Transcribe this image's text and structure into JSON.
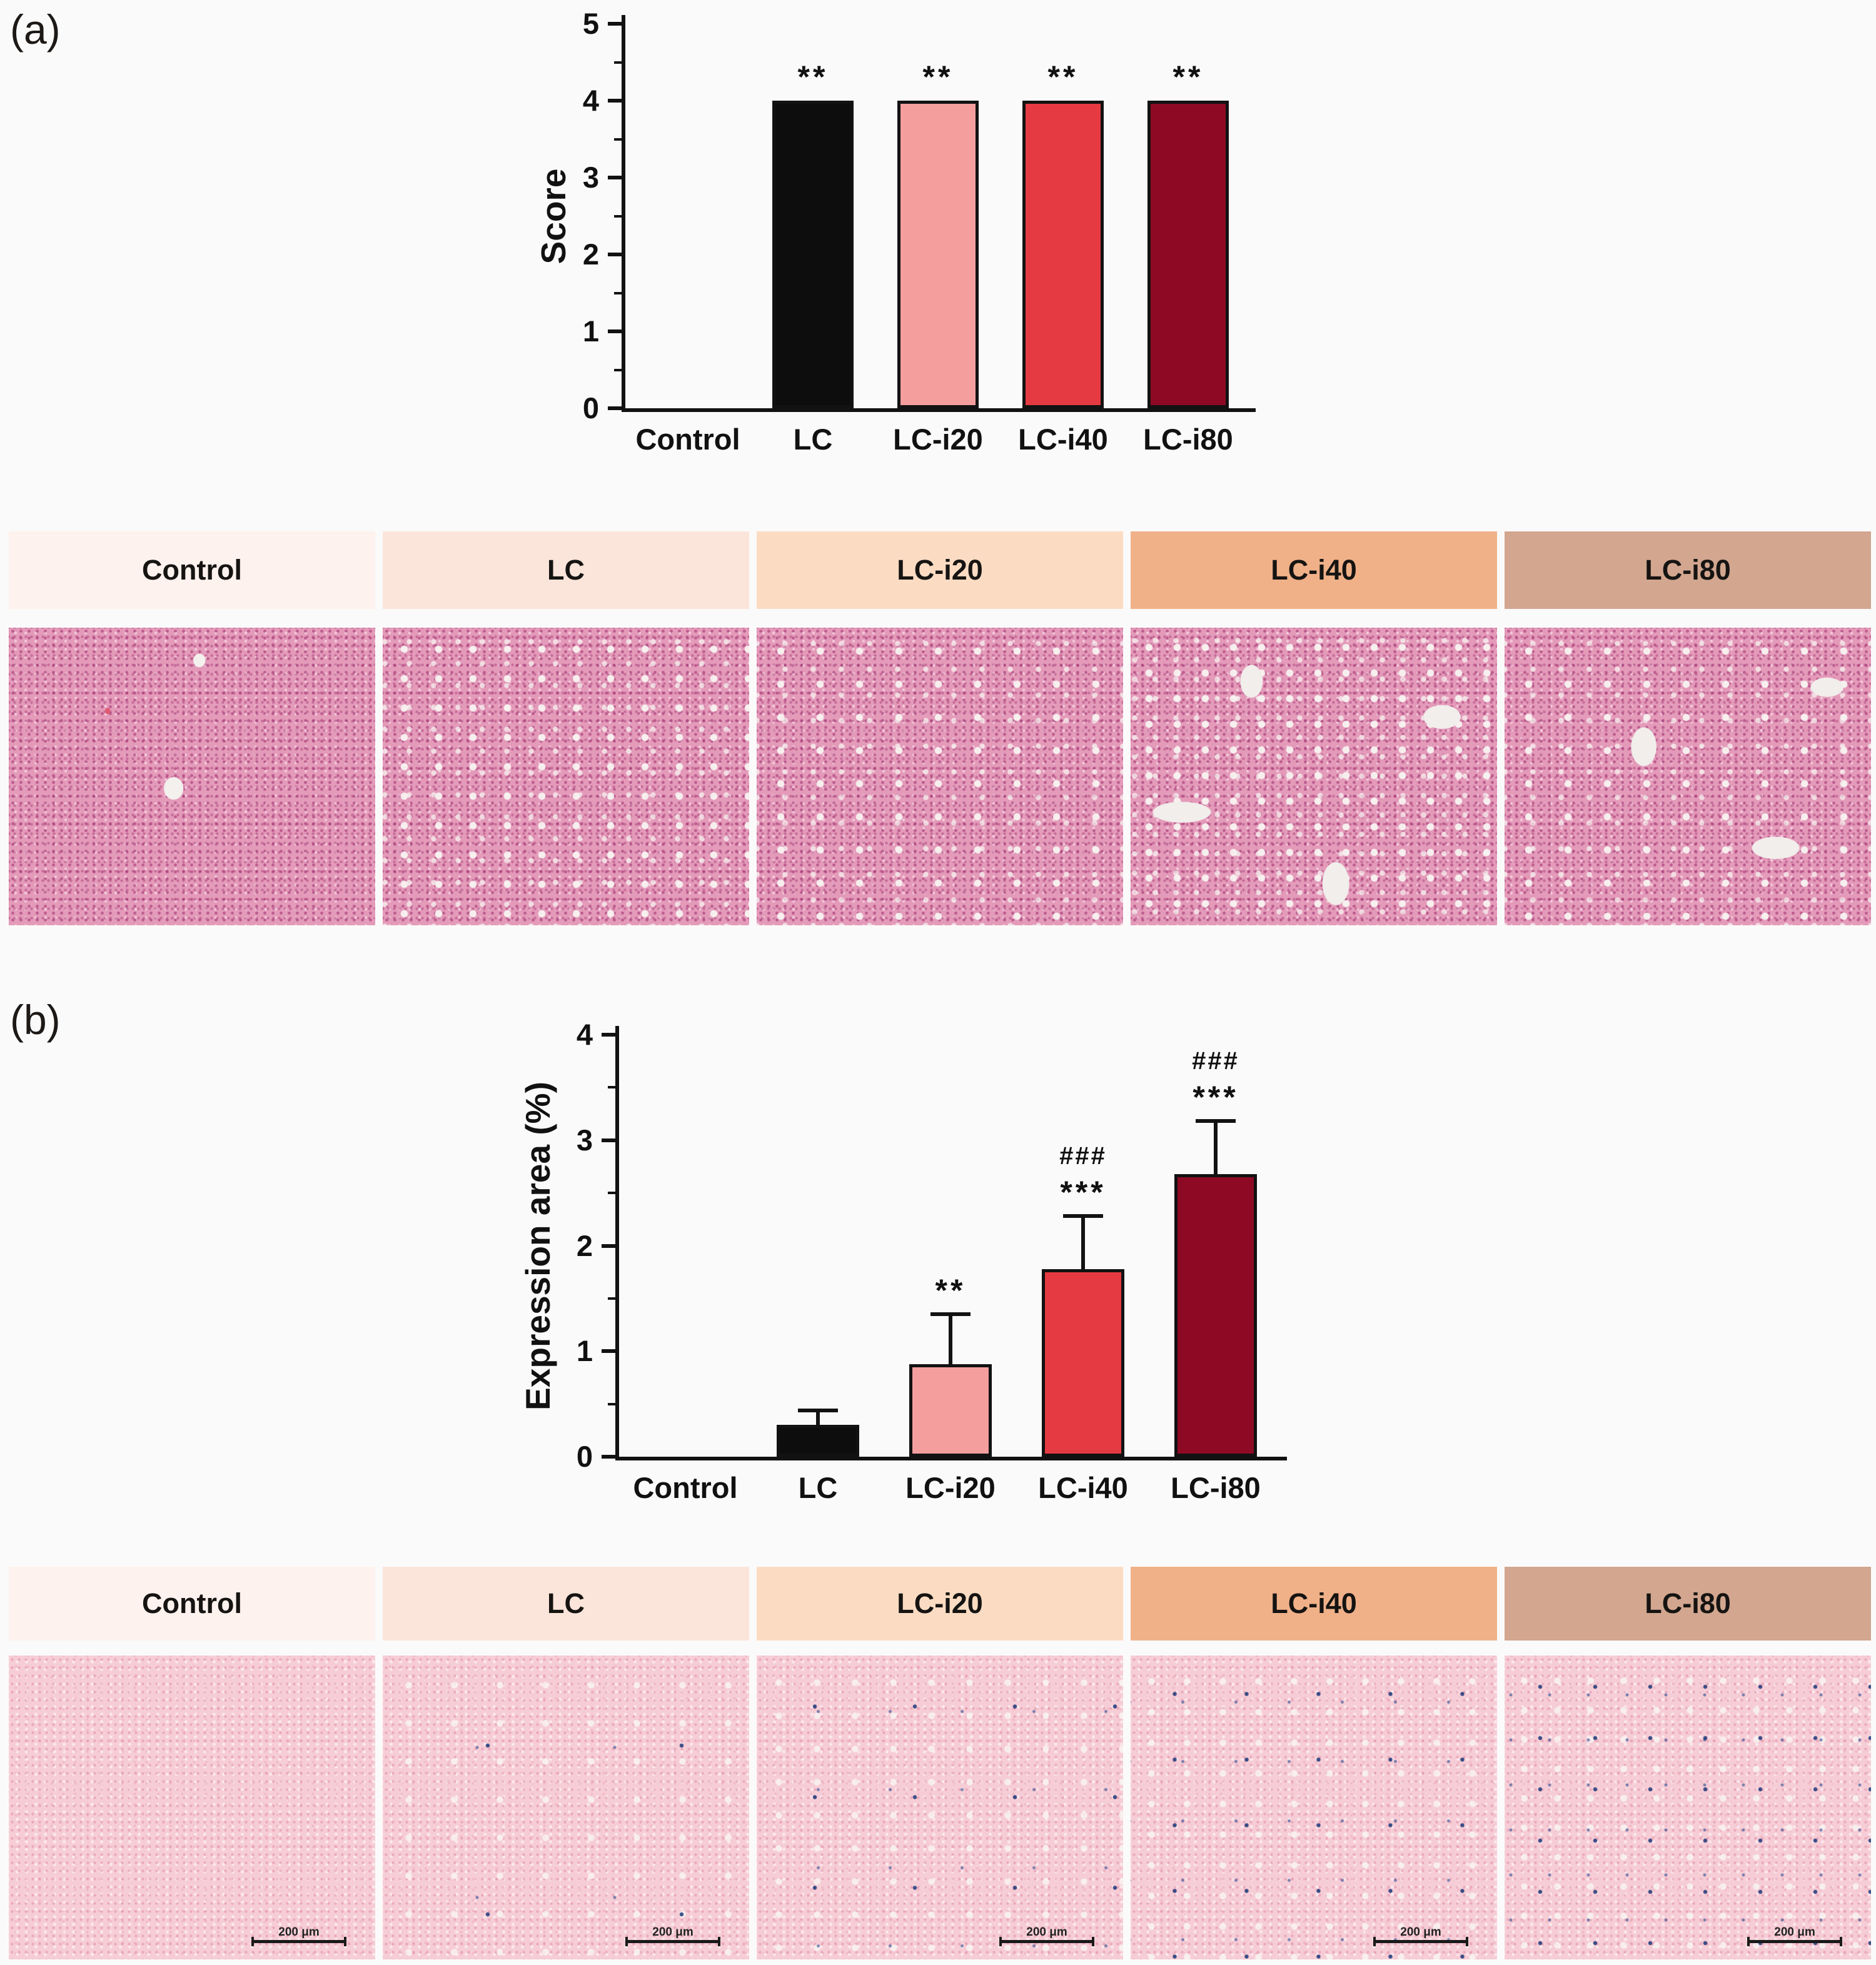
{
  "figure": {
    "panel_a_label": "(a)",
    "panel_b_label": "(b)"
  },
  "groups": [
    {
      "name": "Control",
      "header_color": "#fdf2ed"
    },
    {
      "name": "LC",
      "header_color": "#fbe5da"
    },
    {
      "name": "LC-i20",
      "header_color": "#fbdcc3"
    },
    {
      "name": "LC-i40",
      "header_color": "#f0b189"
    },
    {
      "name": "LC-i80",
      "header_color": "#d2a68f"
    }
  ],
  "scale_bar_label": "200 μm",
  "chart_data": [
    {
      "id": "histology-score",
      "type": "bar",
      "title": "",
      "xlabel": "",
      "ylabel": "Score",
      "ylim": [
        0,
        5
      ],
      "yticks": [
        0,
        1,
        2,
        3,
        4,
        5
      ],
      "categories": [
        "Control",
        "LC",
        "LC-i20",
        "LC-i40",
        "LC-i80"
      ],
      "values": [
        0,
        4,
        4,
        4,
        4
      ],
      "errors": [
        0,
        0,
        0,
        0,
        0
      ],
      "bar_colors": [
        "#000000",
        "#0e0d0d",
        "#f59e9e",
        "#e63a42",
        "#8e0a24"
      ],
      "annotations": [
        "",
        "**",
        "**",
        "**",
        "**"
      ],
      "hash_annotations": [
        "",
        "",
        "",
        "",
        ""
      ],
      "grid": false,
      "legend": "none"
    },
    {
      "id": "expression-area",
      "type": "bar",
      "title": "",
      "xlabel": "",
      "ylabel": "Expression area (%)",
      "ylim": [
        0,
        4
      ],
      "yticks": [
        0,
        1,
        2,
        3,
        4
      ],
      "categories": [
        "Control",
        "LC",
        "LC-i20",
        "LC-i40",
        "LC-i80"
      ],
      "values": [
        0,
        0.3,
        0.88,
        1.78,
        2.68
      ],
      "errors": [
        0,
        0.14,
        0.47,
        0.5,
        0.5
      ],
      "bar_colors": [
        "#000000",
        "#0e0d0d",
        "#f59e9e",
        "#e63a42",
        "#8e0a24"
      ],
      "annotations": [
        "",
        "",
        "**",
        "***",
        "***"
      ],
      "hash_annotations": [
        "",
        "",
        "",
        "###",
        "###"
      ],
      "grid": false,
      "legend": "none"
    }
  ]
}
